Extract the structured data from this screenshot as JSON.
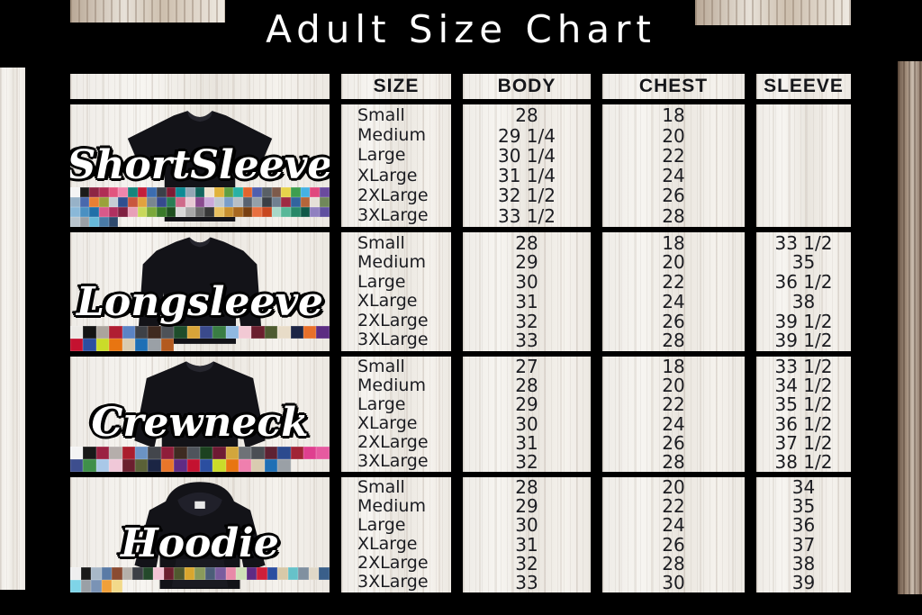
{
  "title": "Adult Size Chart",
  "table": {
    "headers": [
      "",
      "SIZE",
      "BODY",
      "CHEST",
      "SLEEVE"
    ]
  },
  "products": [
    {
      "name": "ShortSleeve",
      "garment": "short-sleeve-tshirt",
      "rows": [
        {
          "size": "Small",
          "body": "28",
          "chest": "18",
          "sleeve": ""
        },
        {
          "size": "Medium",
          "body": "29 1/4",
          "chest": "20",
          "sleeve": ""
        },
        {
          "size": "Large",
          "body": "30 1/4",
          "chest": "22",
          "sleeve": ""
        },
        {
          "size": "XLarge",
          "body": "31 1/4",
          "chest": "24",
          "sleeve": ""
        },
        {
          "size": "2XLarge",
          "body": "32 1/2",
          "chest": "26",
          "sleeve": ""
        },
        {
          "size": "3XLarge",
          "body": "33 1/2",
          "chest": "28",
          "sleeve": ""
        }
      ],
      "swatch_rows": [
        [
          "#f4f4f4",
          "#1b1b1b",
          "#8d2644",
          "#b02e55",
          "#e2557f",
          "#ef86ac",
          "#16857c",
          "#c41f3a",
          "#3c6db0",
          "#3b4048",
          "#7e1b33",
          "#0e8a94",
          "#93a7b5",
          "#13655e",
          "#efe3cf",
          "#e0b23a",
          "#5f9e42",
          "#29b1a5",
          "#e2642e",
          "#4f5fae",
          "#596066",
          "#7d5a4a",
          "#e7d34b",
          "#3e9e4f",
          "#45b2e4",
          "#e0487e",
          "#6a4a9e"
        ],
        [
          "#97b2c8",
          "#4968ad",
          "#e77f34",
          "#9aa23b",
          "#c5cdd4",
          "#2f4f8f",
          "#c9563e",
          "#e2a23e",
          "#7a8690",
          "#364a8e",
          "#2a7d54",
          "#cf6a8a",
          "#e8c9d4",
          "#8a4a8e",
          "#caa8d8",
          "#c0c8cf",
          "#7a9ec9",
          "#b8bfc6",
          "#586270",
          "#95a0a8",
          "#3a3f45",
          "#708090",
          "#9e2b43",
          "#32649e",
          "#b5653a",
          "#e5e0d8",
          "#70885a"
        ],
        [
          "#8ab8d8",
          "#4a90c2",
          "#1f6fa8",
          "#d85a8a",
          "#b03060",
          "#802040",
          "#e8a0b8",
          "#c8d85a",
          "#7aa83a",
          "#3a7a2a",
          "#1f4f1f",
          "#d8d8d8",
          "#a8a8a8",
          "#686868",
          "#383838",
          "#e8c060",
          "#c89030",
          "#a86820",
          "#783f10",
          "#e87040",
          "#c84820",
          "#a8d8c8",
          "#58b898",
          "#288868",
          "#105848",
          "#9080c0",
          "#6050a0"
        ],
        [
          "#b8c4cc",
          "#9aa0a6",
          "#66b8d8",
          "#4a7ba6",
          "#2e4a6e"
        ]
      ]
    },
    {
      "name": "Longsleeve",
      "garment": "long-sleeve-shirt",
      "rows": [
        {
          "size": "Small",
          "body": "28",
          "chest": "18",
          "sleeve": "33 1/2"
        },
        {
          "size": "Medium",
          "body": "29",
          "chest": "20",
          "sleeve": "35"
        },
        {
          "size": "Large",
          "body": "30",
          "chest": "22",
          "sleeve": "36 1/2"
        },
        {
          "size": "XLarge",
          "body": "31",
          "chest": "24",
          "sleeve": "38"
        },
        {
          "size": "2XLarge",
          "body": "32",
          "chest": "26",
          "sleeve": "39 1/2"
        },
        {
          "size": "3XLarge",
          "body": "33",
          "chest": "28",
          "sleeve": "39 1/2"
        }
      ],
      "swatch_rows": [
        [
          "#eceae6",
          "#141414",
          "#aba49d",
          "#b01e32",
          "#5b84c4",
          "#3e4147",
          "#3f2a20",
          "#4e5258",
          "#1e4d2b",
          "#d8a439",
          "#3a4a8c",
          "#3a7d44",
          "#8fb8e0",
          "#f2c9d4",
          "#6b1f2e",
          "#4e5b31",
          "#e8dcc8",
          "#1d2545",
          "#e8702a",
          "#5c2d82"
        ],
        [
          "#c41230",
          "#2b4ea0",
          "#cadb2a",
          "#e87511",
          "#d9cbb0",
          "#1e6fb5",
          "#9aa0a6",
          "#b35a1f"
        ]
      ]
    },
    {
      "name": "Crewneck",
      "garment": "crewneck-sweatshirt",
      "rows": [
        {
          "size": "Small",
          "body": "27",
          "chest": "18",
          "sleeve": "33 1/2"
        },
        {
          "size": "Medium",
          "body": "28",
          "chest": "20",
          "sleeve": "34 1/2"
        },
        {
          "size": "Large",
          "body": "29",
          "chest": "22",
          "sleeve": "35 1/2"
        },
        {
          "size": "XLarge",
          "body": "30",
          "chest": "24",
          "sleeve": "36 1/2"
        },
        {
          "size": "2XLarge",
          "body": "31",
          "chest": "26",
          "sleeve": "37 1/2"
        },
        {
          "size": "3XLarge",
          "body": "32",
          "chest": "28",
          "sleeve": "38 1/2"
        }
      ],
      "swatch_rows": [
        [
          "#f4f4f4",
          "#191919",
          "#9b2242",
          "#b5aeab",
          "#aa1e2d",
          "#6b93c4",
          "#43464c",
          "#8f1d3a",
          "#3e2b22",
          "#4f545c",
          "#1c4220",
          "#6e1a33",
          "#d2a63c",
          "#6e7277",
          "#4a4e54",
          "#5e2233",
          "#2b4a8e",
          "#a12436",
          "#df3f8f",
          "#e65aa0"
        ],
        [
          "#3d4e8e",
          "#3f8f4a",
          "#a9c8e8",
          "#f0c8d8",
          "#6b1f2e",
          "#5a6137",
          "#1b2544",
          "#e8762a",
          "#5f2b84",
          "#c41230",
          "#2b4ea0",
          "#cadb2a",
          "#e87511",
          "#ef7fae",
          "#d9cbb0",
          "#1e6fb5",
          "#9aa0a6"
        ]
      ]
    },
    {
      "name": "Hoodie",
      "garment": "pullover-hoodie",
      "rows": [
        {
          "size": "Small",
          "body": "28",
          "chest": "20",
          "sleeve": "34"
        },
        {
          "size": "Medium",
          "body": "29",
          "chest": "22",
          "sleeve": "35"
        },
        {
          "size": "Large",
          "body": "30",
          "chest": "24",
          "sleeve": "36"
        },
        {
          "size": "XLarge",
          "body": "31",
          "chest": "26",
          "sleeve": "37"
        },
        {
          "size": "2XLarge",
          "body": "32",
          "chest": "28",
          "sleeve": "38"
        },
        {
          "size": "3XLarge",
          "body": "33",
          "chest": "30",
          "sleeve": "39"
        }
      ],
      "swatch_rows": [
        [
          "#efefef",
          "#1a1a1a",
          "#a8b8c8",
          "#5a7ba6",
          "#8a4b32",
          "#b5b0aa",
          "#3c3f45",
          "#24492b",
          "#f2c4d4",
          "#6b1f2e",
          "#50592f",
          "#d9a62e",
          "#8a9a5b",
          "#4b5d78",
          "#7a5c9e",
          "#e88aa8",
          "#cfe0b8",
          "#5f2b84",
          "#cf1f3a",
          "#2b4ea0",
          "#d8c9a8",
          "#66c2c9",
          "#8090a0",
          "#e0d8c8",
          "#3a5f8a"
        ],
        [
          "#7fd4e8",
          "#9aa0a6",
          "#7a93b5",
          "#f0a03a",
          "#f2d98a"
        ]
      ]
    }
  ],
  "colors": {
    "frame": "#000000",
    "ink": "#1b1c21",
    "wood_light": "#f2efe9",
    "wood_brown": "#8a7464",
    "garment": "#131318"
  }
}
